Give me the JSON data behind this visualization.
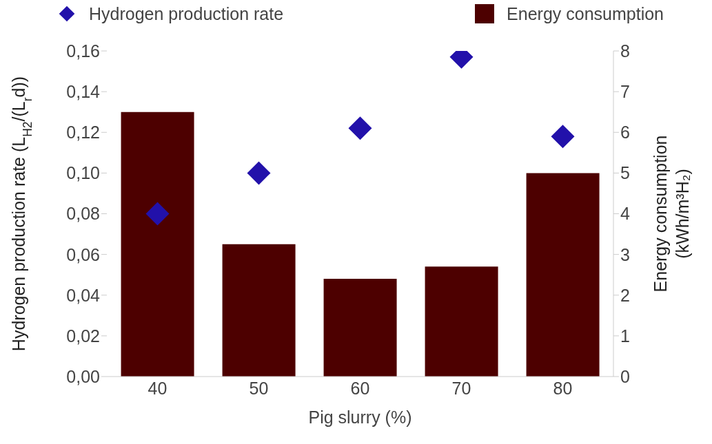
{
  "chart_data": {
    "type": "bar",
    "xlabel": "Pig slurry (%)",
    "ylabel": "Hydrogen production rate (L$_{H2}$/(L$_{r}$d))",
    "y2label": "Energy consumption\n(kWh/m³H₂)",
    "categories": [
      "40",
      "50",
      "60",
      "70",
      "80"
    ],
    "series": [
      {
        "name": "Hydrogen production rate",
        "type": "scatter",
        "color": "#2211aa",
        "marker": "diamond",
        "values": [
          0.08,
          0.1,
          0.122,
          0.157,
          0.118
        ]
      },
      {
        "name": "Energy consumption",
        "axis": "y2",
        "color": "#4d0000",
        "values": [
          6.5,
          3.25,
          2.4,
          2.7,
          5.0
        ]
      }
    ],
    "ylim": [
      0,
      0.16
    ],
    "yticks": [
      {
        "value": 0,
        "label": "0,00"
      },
      {
        "value": 0.02,
        "label": "0,02"
      },
      {
        "value": 0.04,
        "label": "0,04"
      },
      {
        "value": 0.06,
        "label": "0,06"
      },
      {
        "value": 0.08,
        "label": "0,08"
      },
      {
        "value": 0.1,
        "label": "0,10"
      },
      {
        "value": 0.12,
        "label": "0,12"
      },
      {
        "value": 0.14,
        "label": "0,14"
      },
      {
        "value": 0.16,
        "label": "0,16"
      }
    ],
    "y2lim": [
      0,
      8
    ],
    "y2ticks": [
      0,
      1,
      2,
      3,
      4,
      5,
      6,
      7,
      8
    ],
    "grid": false,
    "legend": "top"
  }
}
